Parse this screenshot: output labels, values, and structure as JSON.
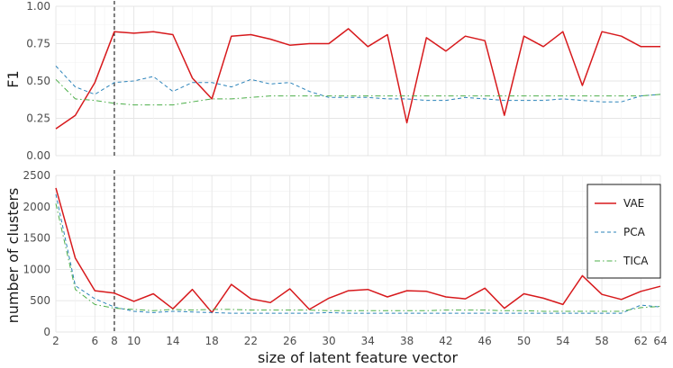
{
  "chart_data": [
    {
      "type": "line",
      "ylabel": "F1",
      "xlabel": "",
      "ylim": [
        0,
        1
      ],
      "yticks": [
        0.0,
        0.25,
        0.5,
        0.75,
        1.0
      ],
      "ytick_labels": [
        "0.00",
        "0.25",
        "0.50",
        "0.75",
        "1.00"
      ],
      "xlim": [
        2,
        64
      ],
      "x": [
        2,
        4,
        6,
        8,
        10,
        12,
        14,
        16,
        18,
        20,
        22,
        24,
        26,
        28,
        30,
        32,
        34,
        36,
        38,
        40,
        42,
        44,
        46,
        48,
        50,
        52,
        54,
        56,
        58,
        60,
        62,
        64
      ],
      "vline_x": 8,
      "grid": true,
      "series": [
        {
          "name": "VAE",
          "color": "#d7191c",
          "dash": "solid",
          "values": [
            0.18,
            0.27,
            0.49,
            0.83,
            0.82,
            0.83,
            0.81,
            0.52,
            0.38,
            0.8,
            0.81,
            0.78,
            0.74,
            0.75,
            0.75,
            0.85,
            0.73,
            0.81,
            0.22,
            0.79,
            0.7,
            0.8,
            0.77,
            0.27,
            0.8,
            0.73,
            0.83,
            0.47,
            0.83,
            0.8,
            0.73,
            0.73
          ]
        },
        {
          "name": "PCA",
          "color": "#2b83ba",
          "dash": "dashed",
          "values": [
            0.6,
            0.46,
            0.41,
            0.49,
            0.5,
            0.53,
            0.43,
            0.49,
            0.49,
            0.46,
            0.51,
            0.48,
            0.49,
            0.43,
            0.39,
            0.39,
            0.39,
            0.38,
            0.38,
            0.37,
            0.37,
            0.39,
            0.38,
            0.37,
            0.37,
            0.37,
            0.38,
            0.37,
            0.36,
            0.36,
            0.4,
            0.41
          ]
        },
        {
          "name": "TICA",
          "color": "#4daf4a",
          "dash": "dashdot",
          "values": [
            0.51,
            0.38,
            0.37,
            0.35,
            0.34,
            0.34,
            0.34,
            0.36,
            0.38,
            0.38,
            0.39,
            0.4,
            0.4,
            0.4,
            0.4,
            0.4,
            0.4,
            0.4,
            0.4,
            0.4,
            0.4,
            0.4,
            0.4,
            0.4,
            0.4,
            0.4,
            0.4,
            0.4,
            0.4,
            0.4,
            0.4,
            0.41
          ]
        }
      ]
    },
    {
      "type": "line",
      "ylabel": "number of clusters",
      "xlabel": "size of latent feature vector",
      "ylim": [
        0,
        2500
      ],
      "yticks": [
        0,
        500,
        1000,
        1500,
        2000,
        2500
      ],
      "ytick_labels": [
        "0",
        "500",
        "1000",
        "1500",
        "2000",
        "2500"
      ],
      "xlim": [
        2,
        64
      ],
      "xticks": [
        2,
        6,
        8,
        10,
        14,
        18,
        22,
        26,
        30,
        34,
        38,
        42,
        46,
        50,
        54,
        58,
        62,
        64
      ],
      "xtick_labels": [
        "2",
        "6",
        "8",
        "10",
        "14",
        "18",
        "22",
        "26",
        "30",
        "34",
        "38",
        "42",
        "46",
        "50",
        "54",
        "58",
        "62",
        "64"
      ],
      "x": [
        2,
        4,
        6,
        8,
        10,
        12,
        14,
        16,
        18,
        20,
        22,
        24,
        26,
        28,
        30,
        32,
        34,
        36,
        38,
        40,
        42,
        44,
        46,
        48,
        50,
        52,
        54,
        56,
        58,
        60,
        62,
        64
      ],
      "vline_x": 8,
      "grid": true,
      "legend_position": "top-right",
      "series": [
        {
          "name": "VAE",
          "color": "#d7191c",
          "dash": "solid",
          "values": [
            2300,
            1180,
            660,
            620,
            490,
            610,
            370,
            680,
            310,
            760,
            530,
            470,
            690,
            360,
            540,
            660,
            680,
            560,
            660,
            650,
            560,
            530,
            700,
            380,
            610,
            540,
            440,
            900,
            600,
            520,
            650,
            730
          ]
        },
        {
          "name": "PCA",
          "color": "#2b83ba",
          "dash": "dashed",
          "values": [
            2200,
            740,
            530,
            400,
            330,
            310,
            330,
            320,
            310,
            300,
            300,
            300,
            300,
            300,
            310,
            300,
            300,
            300,
            300,
            300,
            300,
            300,
            300,
            300,
            300,
            300,
            300,
            300,
            300,
            300,
            430,
            400
          ]
        },
        {
          "name": "TICA",
          "color": "#4daf4a",
          "dash": "dashdot",
          "values": [
            2050,
            680,
            440,
            380,
            360,
            340,
            360,
            350,
            360,
            360,
            350,
            350,
            350,
            350,
            340,
            340,
            340,
            340,
            340,
            340,
            350,
            350,
            350,
            340,
            340,
            330,
            330,
            330,
            330,
            330,
            390,
            410
          ]
        }
      ]
    }
  ]
}
